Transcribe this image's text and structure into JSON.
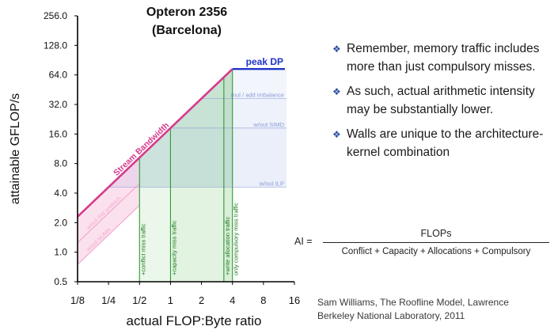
{
  "chart_data": {
    "type": "line",
    "title": "Opteron 2356",
    "subtitle": "(Barcelona)",
    "xlabel": "actual FLOP:Byte ratio",
    "ylabel": "attainable GFLOP/s",
    "x_scale": "log2",
    "y_scale": "log2",
    "xlim": [
      0.125,
      16
    ],
    "ylim": [
      0.5,
      256
    ],
    "x_ticks": [
      {
        "value": 0.125,
        "label": "1/8"
      },
      {
        "value": 0.25,
        "label": "1/4"
      },
      {
        "value": 0.5,
        "label": "1/2"
      },
      {
        "value": 1,
        "label": "1"
      },
      {
        "value": 2,
        "label": "2"
      },
      {
        "value": 4,
        "label": "4"
      },
      {
        "value": 8,
        "label": "8"
      },
      {
        "value": 16,
        "label": "16"
      }
    ],
    "y_ticks": [
      {
        "value": 0.5,
        "label": "0.5"
      },
      {
        "value": 1,
        "label": "1.0"
      },
      {
        "value": 2,
        "label": "2.0"
      },
      {
        "value": 4,
        "label": "4.0"
      },
      {
        "value": 8,
        "label": "8.0"
      },
      {
        "value": 16,
        "label": "16.0"
      },
      {
        "value": 32,
        "label": "32.0"
      },
      {
        "value": 64,
        "label": "64.0"
      },
      {
        "value": 128,
        "label": "128.0"
      },
      {
        "value": 256,
        "label": "256.0"
      }
    ],
    "roofline": {
      "peak_label": "peak DP",
      "peak_gflops": 73.6,
      "bandwidth_label": "Stream Bandwidth",
      "bandwidth_gbs": 18.4,
      "ridge_x": 4
    },
    "compute_ceilings": [
      {
        "label": "mul / add imbalance",
        "y": 36.8
      },
      {
        "label": "w/out SIMD",
        "y": 18.4
      },
      {
        "label": "w/out ILP",
        "y": 4.6
      }
    ],
    "bandwidth_ceilings": [
      {
        "label": "w/out SW prefetch",
        "bandwidth_gbs": 10
      },
      {
        "label": "w/out NUMA",
        "bandwidth_gbs": 6
      }
    ],
    "walls": [
      {
        "label": "+conflict miss traffic",
        "x": 0.5
      },
      {
        "label": "+capacity miss traffic",
        "x": 1
      },
      {
        "label": "+write allocation traffic",
        "x": 3.3
      },
      {
        "label": "only compulsory miss traffic",
        "x": 4
      }
    ],
    "colors": {
      "peak": "#2035c8",
      "bandwidth": "#d63a8c",
      "bandwidth_ceiling": "#f3a9cf",
      "ceiling_band": "#b9c9ee",
      "ceiling_label": "#8a9ad6",
      "wall_fill": "#8fd18f",
      "wall_line": "#2e9a2e",
      "wall_text": "#1e7a1e"
    }
  },
  "bullets": [
    "Remember, memory traffic includes more than just compulsory misses.",
    "As such, actual arithmetic intensity may be substantially lower.",
    "Walls are unique to the architecture-kernel combination"
  ],
  "formula": {
    "lhs": "AI =",
    "numerator": "FLOPs",
    "denominator": "Conflict + Capacity + Allocations + Compulsory"
  },
  "citation": {
    "line1": "Sam Williams, The Roofline Model, Lawrence",
    "line2": "Berkeley National Laboratory, 2011"
  }
}
